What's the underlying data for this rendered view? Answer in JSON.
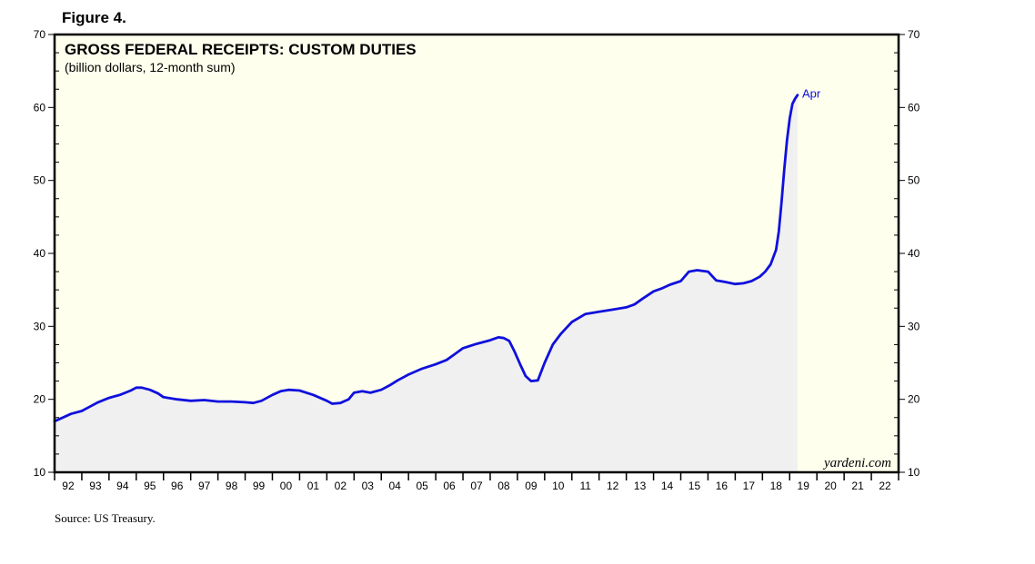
{
  "figure_label": "Figure 4.",
  "source": "Source: US Treasury.",
  "watermark": "yardeni.com",
  "colors": {
    "background": "#ffffee",
    "line": "#1010dd",
    "area": "#f0f0f0",
    "axis": "#000000"
  },
  "chart_data": {
    "type": "area",
    "title": "GROSS FEDERAL RECEIPTS: CUSTOM DUTIES",
    "subtitle": "(billion dollars, 12-month sum)",
    "xlabel": "",
    "ylabel": "",
    "x_tick_labels": [
      "92",
      "93",
      "94",
      "95",
      "96",
      "97",
      "98",
      "99",
      "00",
      "01",
      "02",
      "03",
      "04",
      "05",
      "06",
      "07",
      "08",
      "09",
      "10",
      "11",
      "12",
      "13",
      "14",
      "15",
      "16",
      "17",
      "18",
      "19",
      "20",
      "21",
      "22"
    ],
    "xlim": [
      1992,
      2023
    ],
    "ylim": [
      10,
      70
    ],
    "y_ticks": [
      10,
      20,
      30,
      40,
      50,
      60,
      70
    ],
    "grid": false,
    "annotation": {
      "text": "Apr",
      "x": 2019.29,
      "y": 61.7
    },
    "series": [
      {
        "x": [
          1992.0,
          1992.3,
          1992.6,
          1993.0,
          1993.3,
          1993.6,
          1994.0,
          1994.4,
          1994.8,
          1995.0,
          1995.2,
          1995.5,
          1995.8,
          1996.0,
          1996.5,
          1997.0,
          1997.5,
          1998.0,
          1998.5,
          1999.0,
          1999.3,
          1999.6,
          2000.0,
          2000.3,
          2000.6,
          2001.0,
          2001.5,
          2002.0,
          2002.2,
          2002.5,
          2002.8,
          2003.0,
          2003.3,
          2003.6,
          2004.0,
          2004.3,
          2004.6,
          2005.0,
          2005.5,
          2006.0,
          2006.4,
          2006.7,
          2007.0,
          2007.5,
          2008.0,
          2008.3,
          2008.5,
          2008.7,
          2008.9,
          2009.1,
          2009.3,
          2009.5,
          2009.75,
          2010.0,
          2010.3,
          2010.6,
          2011.0,
          2011.5,
          2012.0,
          2012.5,
          2013.0,
          2013.3,
          2013.6,
          2014.0,
          2014.3,
          2014.6,
          2015.0,
          2015.3,
          2015.6,
          2016.0,
          2016.3,
          2016.6,
          2017.0,
          2017.3,
          2017.6,
          2017.9,
          2018.1,
          2018.3,
          2018.5,
          2018.6,
          2018.7,
          2018.8,
          2018.9,
          2019.0,
          2019.1,
          2019.2,
          2019.29
        ],
        "values": [
          17.0,
          17.5,
          18.0,
          18.4,
          19.0,
          19.6,
          20.2,
          20.6,
          21.2,
          21.6,
          21.6,
          21.3,
          20.8,
          20.3,
          20.0,
          19.8,
          19.9,
          19.7,
          19.7,
          19.6,
          19.5,
          19.8,
          20.6,
          21.1,
          21.3,
          21.2,
          20.6,
          19.8,
          19.4,
          19.5,
          20.0,
          20.9,
          21.1,
          20.9,
          21.3,
          21.9,
          22.6,
          23.4,
          24.2,
          24.8,
          25.4,
          26.2,
          27.0,
          27.6,
          28.1,
          28.5,
          28.4,
          28.0,
          26.5,
          24.8,
          23.2,
          22.5,
          22.6,
          25.0,
          27.5,
          29.0,
          30.6,
          31.7,
          32.0,
          32.3,
          32.6,
          33.0,
          33.8,
          34.8,
          35.2,
          35.7,
          36.2,
          37.5,
          37.7,
          37.5,
          36.3,
          36.1,
          35.8,
          35.9,
          36.2,
          36.8,
          37.5,
          38.5,
          40.5,
          43.0,
          47.0,
          51.5,
          55.5,
          58.5,
          60.5,
          61.2,
          61.7
        ]
      }
    ]
  }
}
